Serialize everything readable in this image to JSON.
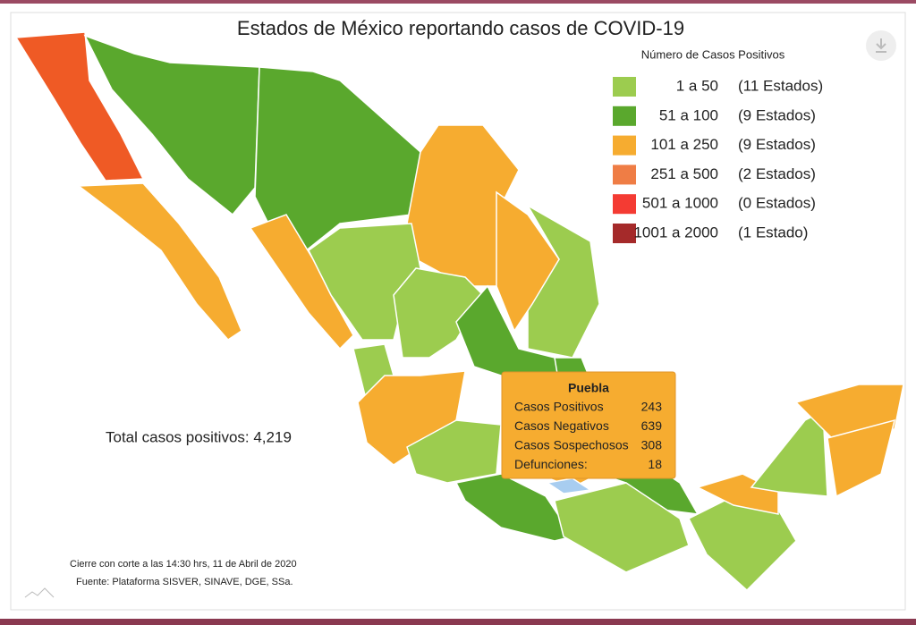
{
  "title": "Estados de México reportando casos de COVID-19",
  "legend": {
    "title": "Número de Casos Positivos",
    "items": [
      {
        "range": "1 a 50",
        "count": "(11 Estados)",
        "color": "#9ccc4f"
      },
      {
        "range": "51 a 100",
        "count": "(9 Estados)",
        "color": "#5aa82d"
      },
      {
        "range": "101 a 250",
        "count": "(9 Estados)",
        "color": "#f6ac30"
      },
      {
        "range": "251 a 500",
        "count": "(2 Estados)",
        "color": "#ef7d45"
      },
      {
        "range": "501 a 1000",
        "count": "(0 Estados)",
        "color": "#f43b33"
      },
      {
        "range": "1001 a 2000",
        "count": "(1 Estado)",
        "color": "#a52a2a"
      }
    ]
  },
  "total": "Total casos positivos: 4,219",
  "tooltip": {
    "title": "Puebla",
    "rows": [
      {
        "label": "Casos Positivos",
        "value": 243
      },
      {
        "label": "Casos Negativos",
        "value": 639
      },
      {
        "label": "Casos Sospechosos",
        "value": 308
      },
      {
        "label": "Defunciones:",
        "value": 18
      }
    ]
  },
  "footnotes": [
    "Cierre con corte a las 14:30 hrs, 11 de Abril de 2020",
    "Fuente: Plataforma SISVER, SINAVE, DGE, SSa."
  ]
}
